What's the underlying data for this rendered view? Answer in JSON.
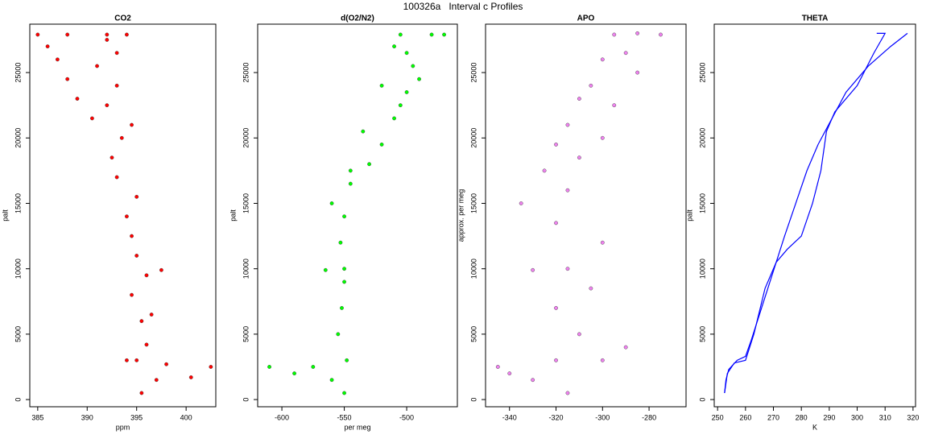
{
  "title": "100326a   Interval c Profiles",
  "chart_data": [
    {
      "type": "scatter",
      "title": "CO2",
      "xlabel": "ppm",
      "ylabel": "palt",
      "color": "#ff0000",
      "xlim": [
        384.2,
        403.0
      ],
      "xticks": [
        385,
        390,
        395,
        400
      ],
      "ylim": [
        -550,
        28700
      ],
      "yticks": [
        0,
        5000,
        10000,
        15000,
        20000,
        25000
      ],
      "x": [
        395.5,
        397,
        400.5,
        402.5,
        395,
        394,
        396,
        395.5,
        394.5,
        396,
        397.5,
        395,
        394.5,
        394,
        395,
        393,
        392.5,
        393.5,
        394.5,
        390.5,
        392,
        389,
        393,
        388,
        391,
        387,
        393,
        386,
        392,
        385,
        388,
        392,
        394,
        398,
        396.5
      ],
      "y": [
        500,
        1500,
        1700,
        2500,
        3000,
        3000,
        4200,
        6000,
        8000,
        9500,
        9900,
        11000,
        12500,
        14000,
        15500,
        17000,
        18500,
        20000,
        21000,
        21500,
        22500,
        23000,
        24000,
        24500,
        25500,
        26000,
        26500,
        27000,
        27500,
        27900,
        27900,
        27900,
        27900,
        2700,
        6500
      ]
    },
    {
      "type": "scatter",
      "title": "d(O2/N2)",
      "xlabel": "per meg",
      "ylabel": "palt",
      "color": "#00ff00",
      "xlim": [
        -619.4,
        -459.4
      ],
      "xticks": [
        -600,
        -550,
        -500
      ],
      "ylim": [
        -550,
        28700
      ],
      "yticks": [
        0,
        5000,
        10000,
        15000,
        20000,
        25000
      ],
      "x": [
        -550,
        -560,
        -590,
        -610,
        -575,
        -548,
        -555,
        -552,
        -550,
        -565,
        -550,
        -553,
        -550,
        -560,
        -545,
        -530,
        -520,
        -535,
        -510,
        -505,
        -500,
        -490,
        -495,
        -500,
        -480,
        -470,
        -505,
        -510,
        -520,
        -545
      ],
      "y": [
        500,
        1500,
        2000,
        2500,
        2500,
        3000,
        5000,
        7000,
        9000,
        9900,
        10000,
        12000,
        14000,
        15000,
        16500,
        18000,
        19500,
        20500,
        21500,
        22500,
        23500,
        24500,
        25500,
        26500,
        27900,
        27900,
        27900,
        27000,
        24000,
        17500
      ]
    },
    {
      "type": "scatter",
      "title": "APO",
      "ylabel": "approx. per meg",
      "color": "#ee82ee",
      "xlim": [
        -350.3,
        -264.1
      ],
      "xticks": [
        -340,
        -320,
        -300,
        -280
      ],
      "ylim": [
        -550,
        28700
      ],
      "yticks": [
        0,
        5000,
        10000,
        15000,
        20000,
        25000
      ],
      "x": [
        -315,
        -330,
        -345,
        -320,
        -300,
        -310,
        -320,
        -305,
        -330,
        -315,
        -300,
        -320,
        -335,
        -315,
        -325,
        -310,
        -300,
        -315,
        -295,
        -305,
        -285,
        -290,
        -295,
        -275,
        -285,
        -300,
        -310,
        -320,
        -290,
        -340
      ],
      "y": [
        500,
        1500,
        2500,
        3000,
        3000,
        5000,
        7000,
        8500,
        9900,
        10000,
        12000,
        13500,
        15000,
        16000,
        17500,
        18500,
        20000,
        21000,
        22500,
        24000,
        25000,
        26500,
        27900,
        27900,
        28000,
        26000,
        23000,
        19500,
        4000,
        2000
      ]
    },
    {
      "type": "line",
      "title": "THETA",
      "xlabel": "K",
      "ylabel": "palt",
      "xlim": [
        248.8,
        320.9
      ],
      "xticks": [
        250,
        260,
        270,
        280,
        290,
        300,
        310,
        320
      ],
      "ylim": [
        -550,
        28700
      ],
      "yticks": [
        0,
        5000,
        10000,
        15000,
        20000,
        25000
      ],
      "series": [
        {
          "color": "#0000ff",
          "x": [
            252.5,
            253,
            254,
            257,
            260,
            262,
            265,
            268,
            271,
            274,
            278,
            282,
            286,
            291,
            296,
            304,
            312,
            318
          ],
          "y": [
            500,
            1500,
            2300,
            3000,
            3300,
            4500,
            6500,
            8500,
            10500,
            12500,
            15000,
            17500,
            19500,
            21500,
            23500,
            25500,
            27000,
            28000
          ]
        },
        {
          "color": "#0000ff",
          "x": [
            252.5,
            253.5,
            256,
            260,
            263,
            267,
            271,
            275,
            280,
            284,
            287,
            289,
            292,
            300,
            306,
            310,
            307
          ],
          "y": [
            500,
            2000,
            2800,
            3000,
            5000,
            8500,
            10500,
            11500,
            12500,
            15000,
            17500,
            20500,
            22000,
            24000,
            26500,
            28000,
            28000
          ]
        }
      ]
    }
  ]
}
